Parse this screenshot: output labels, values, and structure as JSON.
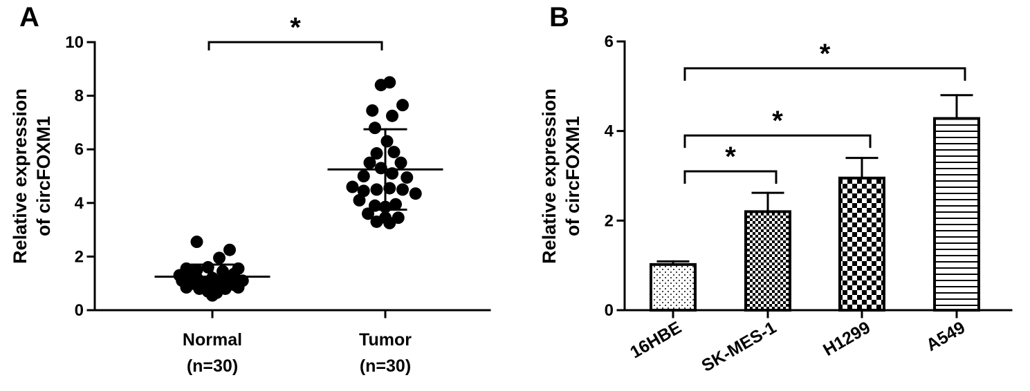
{
  "panels": [
    {
      "label": "A"
    },
    {
      "label": "B"
    }
  ],
  "chart_data": [
    {
      "type": "scatter",
      "panel": "A",
      "ylabel_lines": [
        "Relative expression",
        "of circFOXM1"
      ],
      "ylim": [
        0,
        10
      ],
      "yticks": [
        0,
        2,
        4,
        6,
        8,
        10
      ],
      "categories": [
        {
          "lines": [
            "Normal",
            "(n=30)"
          ]
        },
        {
          "lines": [
            "Tumor",
            "(n=30)"
          ]
        }
      ],
      "series": [
        {
          "category_index": 0,
          "mean": 1.25,
          "sd_low": 0.8,
          "sd_high": 1.7,
          "points": [
            {
              "dx": -0.3,
              "y": 1.55
            },
            {
              "dx": -0.18,
              "y": 1.5
            },
            {
              "dx": -0.05,
              "y": 1.6
            },
            {
              "dx": 0.08,
              "y": 1.95
            },
            {
              "dx": 0.2,
              "y": 2.25
            },
            {
              "dx": -0.18,
              "y": 2.55
            },
            {
              "dx": 0.3,
              "y": 1.55
            },
            {
              "dx": 0.12,
              "y": 1.45
            },
            {
              "dx": -0.25,
              "y": 1.35
            },
            {
              "dx": 0.25,
              "y": 1.35
            },
            {
              "dx": -0.35,
              "y": 1.1
            },
            {
              "dx": 0.35,
              "y": 1.1
            },
            {
              "dx": -0.22,
              "y": 1.05
            },
            {
              "dx": 0.22,
              "y": 1.05
            },
            {
              "dx": 0.0,
              "y": 1.2
            },
            {
              "dx": -0.1,
              "y": 1.0
            },
            {
              "dx": 0.1,
              "y": 1.0
            },
            {
              "dx": -0.3,
              "y": 0.85
            },
            {
              "dx": 0.3,
              "y": 0.85
            },
            {
              "dx": -0.15,
              "y": 0.8
            },
            {
              "dx": 0.15,
              "y": 0.8
            },
            {
              "dx": -0.05,
              "y": 0.7
            },
            {
              "dx": 0.05,
              "y": 0.65
            },
            {
              "dx": 0.0,
              "y": 0.55
            },
            {
              "dx": 0.18,
              "y": 1.2
            },
            {
              "dx": -0.18,
              "y": 1.2
            },
            {
              "dx": 0.07,
              "y": 0.9
            },
            {
              "dx": -0.07,
              "y": 0.9
            },
            {
              "dx": 0.25,
              "y": 0.95
            },
            {
              "dx": -0.38,
              "y": 1.3
            }
          ]
        },
        {
          "category_index": 1,
          "mean": 5.25,
          "sd_low": 3.75,
          "sd_high": 6.75,
          "points": [
            {
              "dx": -0.05,
              "y": 8.4
            },
            {
              "dx": 0.05,
              "y": 8.5
            },
            {
              "dx": -0.15,
              "y": 7.45
            },
            {
              "dx": 0.08,
              "y": 7.25
            },
            {
              "dx": 0.2,
              "y": 7.65
            },
            {
              "dx": -0.12,
              "y": 6.8
            },
            {
              "dx": 0.02,
              "y": 6.3
            },
            {
              "dx": -0.1,
              "y": 5.85
            },
            {
              "dx": 0.1,
              "y": 5.9
            },
            {
              "dx": -0.18,
              "y": 5.5
            },
            {
              "dx": 0.18,
              "y": 5.5
            },
            {
              "dx": -0.05,
              "y": 5.3
            },
            {
              "dx": 0.08,
              "y": 5.1
            },
            {
              "dx": -0.25,
              "y": 5.0
            },
            {
              "dx": 0.25,
              "y": 4.95
            },
            {
              "dx": -0.38,
              "y": 4.6
            },
            {
              "dx": -0.25,
              "y": 4.45
            },
            {
              "dx": -0.1,
              "y": 4.5
            },
            {
              "dx": 0.05,
              "y": 4.55
            },
            {
              "dx": 0.2,
              "y": 4.5
            },
            {
              "dx": 0.35,
              "y": 4.35
            },
            {
              "dx": -0.3,
              "y": 4.1
            },
            {
              "dx": -0.12,
              "y": 3.9
            },
            {
              "dx": 0.0,
              "y": 3.85
            },
            {
              "dx": 0.12,
              "y": 3.95
            },
            {
              "dx": -0.2,
              "y": 3.6
            },
            {
              "dx": 0.0,
              "y": 3.45
            },
            {
              "dx": 0.15,
              "y": 3.45
            },
            {
              "dx": -0.1,
              "y": 3.3
            },
            {
              "dx": 0.05,
              "y": 3.25
            }
          ]
        }
      ],
      "comparisons": [
        {
          "from": 0,
          "to": 1,
          "y": 10.0,
          "mark": "*"
        }
      ]
    },
    {
      "type": "bar",
      "panel": "B",
      "ylabel_lines": [
        "Relative expression",
        "of circFOXM1"
      ],
      "ylim": [
        0,
        6
      ],
      "yticks": [
        0,
        2,
        4,
        6
      ],
      "categories": [
        "16HBE",
        "SK-MES-1",
        "H1299",
        "A549"
      ],
      "values": [
        1.02,
        2.2,
        2.95,
        4.28
      ],
      "errors": [
        0.07,
        0.42,
        0.45,
        0.52
      ],
      "patterns": [
        "dots",
        "checker-small",
        "checker-large",
        "hlines"
      ],
      "comparisons": [
        {
          "from": 0,
          "to": 1,
          "y": 3.1,
          "mark": "*"
        },
        {
          "from": 0,
          "to": 2,
          "y": 3.9,
          "mark": "*"
        },
        {
          "from": 0,
          "to": 3,
          "y": 5.4,
          "mark": "*"
        }
      ]
    }
  ]
}
